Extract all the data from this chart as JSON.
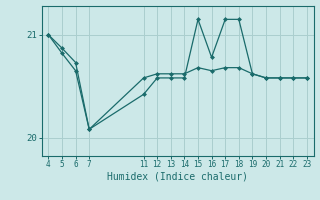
{
  "xlabel": "Humidex (Indice chaleur)",
  "background_color": "#cce8e8",
  "line_color": "#1a6b6b",
  "grid_color": "#aacece",
  "yticks": [
    20,
    21
  ],
  "xticks": [
    4,
    5,
    6,
    7,
    11,
    12,
    13,
    14,
    15,
    16,
    17,
    18,
    19,
    20,
    21,
    22,
    23
  ],
  "series1_x": [
    4,
    5,
    6,
    7,
    11,
    12,
    13,
    14,
    15,
    16,
    17,
    18,
    19,
    20,
    21,
    22,
    23
  ],
  "series1_y": [
    21.0,
    20.87,
    20.73,
    20.08,
    20.58,
    20.62,
    20.62,
    20.62,
    20.68,
    20.65,
    20.68,
    20.68,
    20.62,
    20.58,
    20.58,
    20.58,
    20.58
  ],
  "series2_x": [
    4,
    5,
    6,
    7,
    11,
    12,
    13,
    14,
    15,
    16,
    17,
    18,
    19,
    20,
    21,
    22,
    23
  ],
  "series2_y": [
    21.0,
    20.82,
    20.65,
    20.08,
    20.42,
    20.58,
    20.58,
    20.58,
    21.15,
    20.78,
    21.15,
    21.15,
    20.62,
    20.58,
    20.58,
    20.58,
    20.58
  ],
  "ylim": [
    19.82,
    21.28
  ],
  "xlim": [
    3.5,
    23.5
  ]
}
